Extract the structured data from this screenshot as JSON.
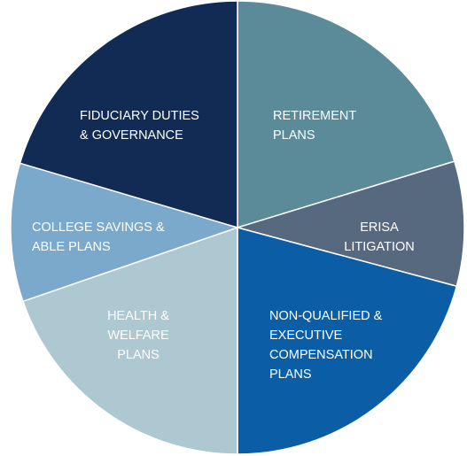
{
  "segments": [
    {
      "label": [
        "RETIREMENT",
        "PLANS"
      ]
    },
    {
      "label": [
        "ERISA",
        "LITIGATION"
      ]
    },
    {
      "label": [
        "NON-QUALIFIED &",
        "EXECUTIVE",
        "COMPENSATION",
        "PLANS"
      ]
    },
    {
      "label": [
        "HEALTH &",
        "WELFARE",
        "PLANS"
      ]
    },
    {
      "label": [
        "COLLEGE SAVINGS &",
        "ABLE PLANS"
      ]
    },
    {
      "label": [
        "FIDUCIARY DUTIES",
        "& GOVERNANCE"
      ]
    }
  ]
}
